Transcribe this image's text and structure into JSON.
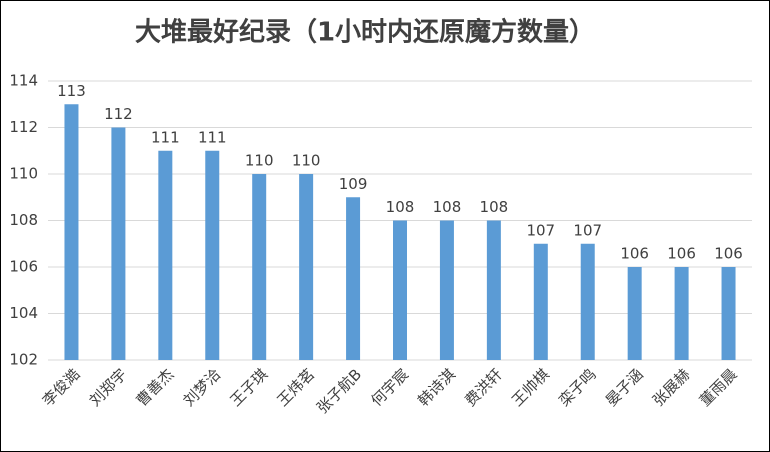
{
  "chart_data": {
    "type": "bar",
    "title": "大堆最好纪录（1小时内还原魔方数量）",
    "categories": [
      "李俊澔",
      "刘郑宇",
      "曹善杰",
      "刘梦洽",
      "王子琪",
      "王炜茗",
      "张子航B",
      "何宇宸",
      "韩诗淇",
      "费洪轩",
      "王帅棋",
      "栾子鸣",
      "晏子涵",
      "张展赫",
      "董雨晨"
    ],
    "values": [
      113,
      112,
      111,
      111,
      110,
      110,
      109,
      108,
      108,
      108,
      107,
      107,
      106,
      106,
      106
    ],
    "color": "#5b9bd5",
    "ylim": [
      102,
      114
    ],
    "yticks": [
      102,
      104,
      106,
      108,
      110,
      112,
      114
    ],
    "grid": true
  }
}
